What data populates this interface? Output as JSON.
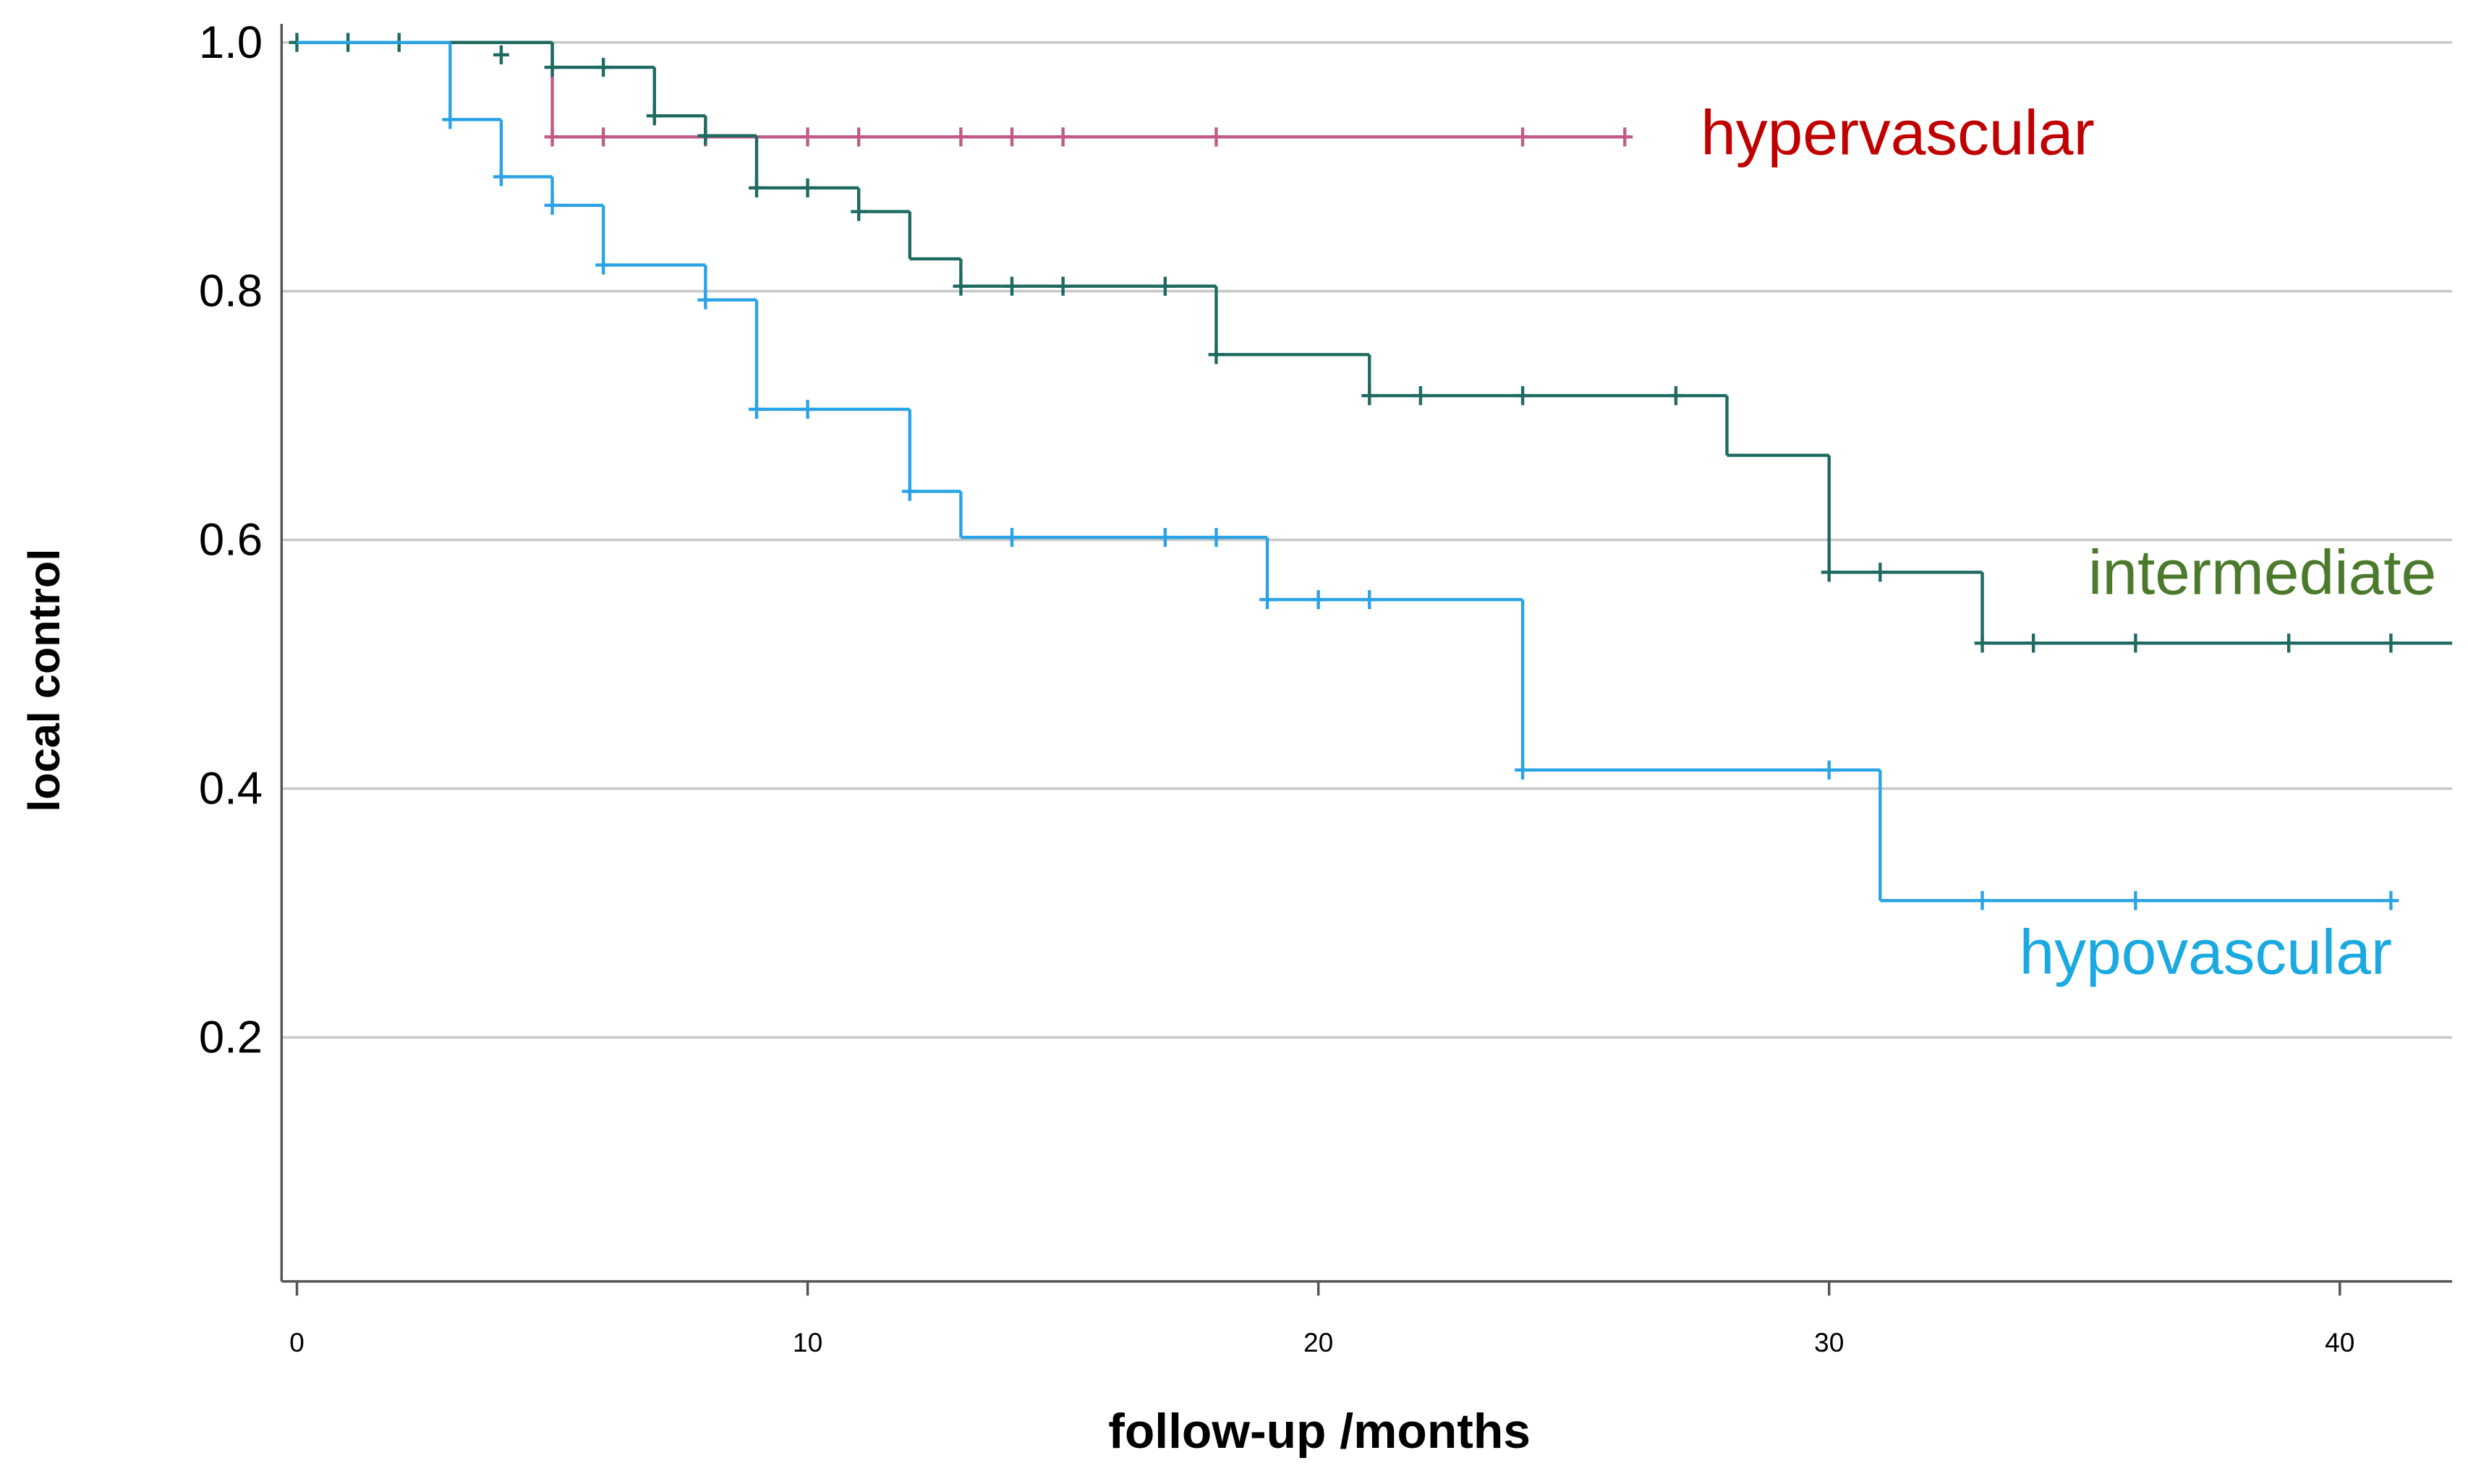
{
  "chart_data": {
    "type": "kaplan-meier",
    "x_label": "follow-up /months",
    "y_label": "local control",
    "xlim": [
      -0.3,
      42.2
    ],
    "ylim": [
      0,
      1.02
    ],
    "xticks": [
      0,
      10,
      20,
      30,
      40
    ],
    "yticks": [
      0.2,
      0.4,
      0.6,
      0.8,
      {
        "value": 1,
        "label": "1.0"
      }
    ],
    "grid": true,
    "series": [
      {
        "name": "hypervascular",
        "color": "#c25a86",
        "label_color": "#c00000",
        "x": [
          0,
          5,
          26
        ],
        "values": [
          1,
          0.924,
          0.924
        ],
        "censored": {
          "x": [
            5,
            6,
            8,
            10,
            11,
            13,
            14,
            15,
            18,
            24,
            26
          ],
          "values": [
            0.924,
            0.924,
            0.924,
            0.924,
            0.924,
            0.924,
            0.924,
            0.924,
            0.924,
            0.924,
            0.924
          ]
        }
      },
      {
        "name": "intermediate",
        "color": "#1d6a60",
        "label_color": "#4b7a2c",
        "x": [
          0,
          5,
          7,
          8,
          9,
          11,
          12,
          13,
          18,
          21,
          28,
          30,
          33,
          42.2
        ],
        "values": [
          1,
          0.98,
          0.941,
          0.925,
          0.883,
          0.864,
          0.826,
          0.804,
          0.749,
          0.716,
          0.668,
          0.574,
          0.517,
          0.517
        ],
        "censored": {
          "x": [
            0,
            1,
            2,
            4,
            5,
            6,
            7,
            8,
            9,
            10,
            11,
            13,
            14,
            15,
            17,
            18,
            21,
            22,
            24,
            27,
            30,
            31,
            33,
            34,
            36,
            39,
            41
          ],
          "values": [
            1,
            1,
            1,
            0.99,
            0.98,
            0.98,
            0.941,
            0.925,
            0.883,
            0.883,
            0.864,
            0.804,
            0.804,
            0.804,
            0.804,
            0.749,
            0.716,
            0.716,
            0.716,
            0.716,
            0.574,
            0.574,
            0.517,
            0.517,
            0.517,
            0.517,
            0.517
          ]
        }
      },
      {
        "name": "hypovascular",
        "color": "#2aa3e6",
        "label_color": "#1aa9e0",
        "x": [
          0,
          3,
          4,
          5,
          6,
          8,
          9,
          12,
          13,
          19,
          24,
          31,
          41
        ],
        "values": [
          1,
          0.938,
          0.892,
          0.869,
          0.821,
          0.793,
          0.705,
          0.639,
          0.602,
          0.552,
          0.415,
          0.31,
          0.31
        ],
        "censored": {
          "x": [
            3,
            4,
            5,
            6,
            8,
            9,
            10,
            12,
            14,
            17,
            18,
            19,
            20,
            21,
            24,
            30,
            33,
            36,
            41
          ],
          "values": [
            0.938,
            0.892,
            0.869,
            0.821,
            0.793,
            0.705,
            0.705,
            0.639,
            0.602,
            0.602,
            0.602,
            0.552,
            0.552,
            0.552,
            0.415,
            0.415,
            0.31,
            0.31,
            0.31
          ]
        }
      }
    ]
  }
}
